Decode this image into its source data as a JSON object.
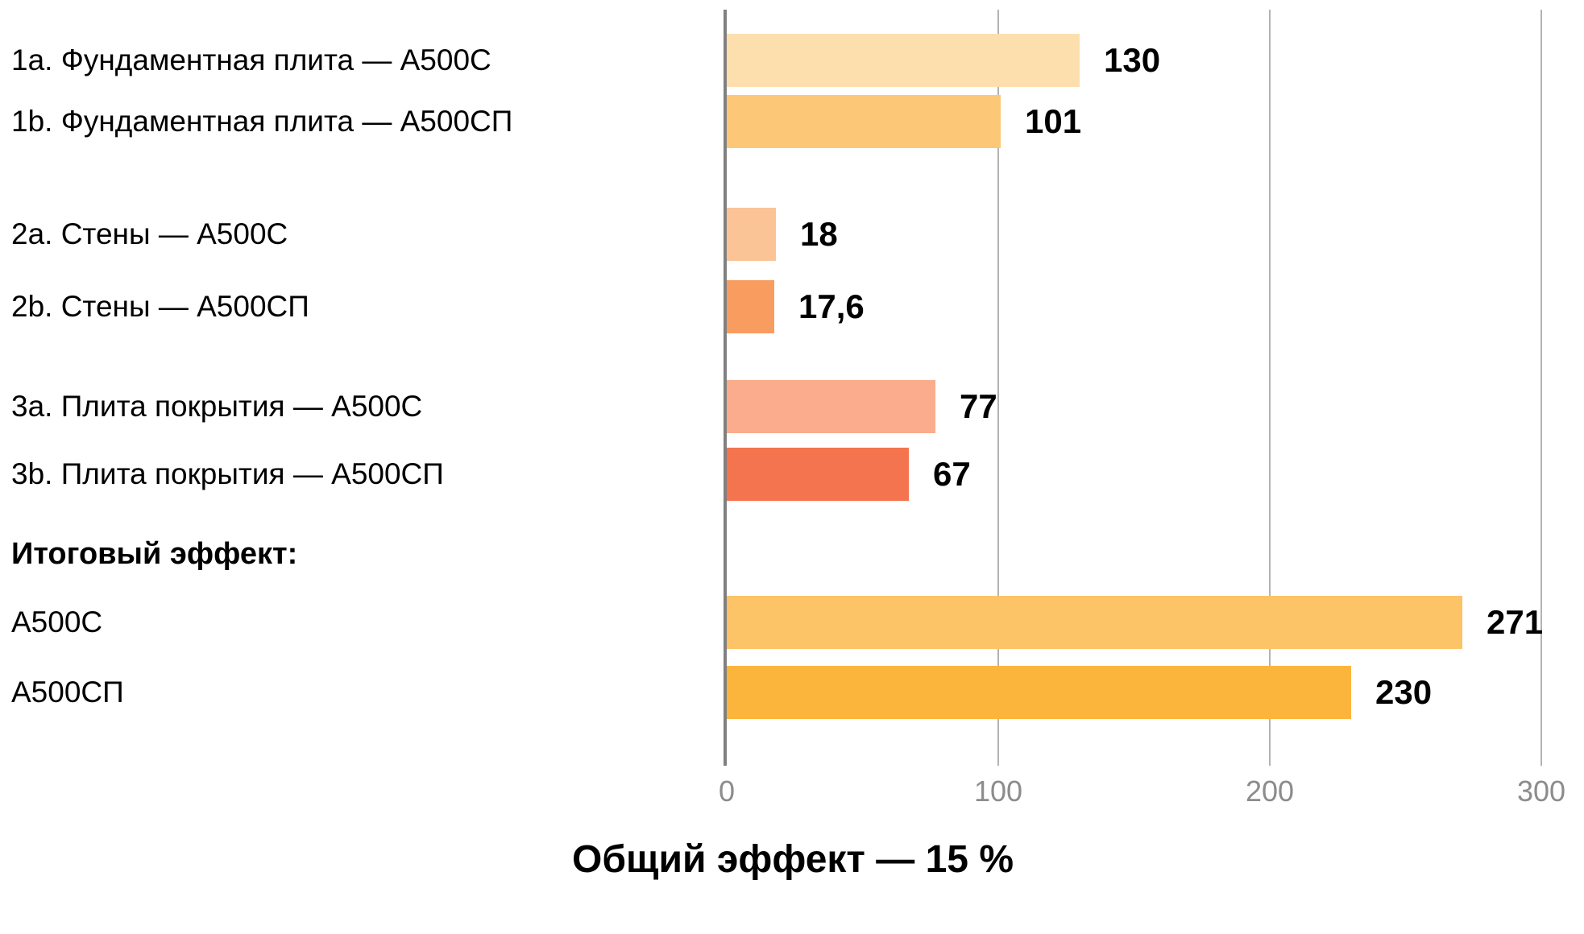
{
  "chart_data": {
    "type": "bar",
    "orientation": "horizontal",
    "title": "Общий эффект — 15 %",
    "section_heading": "Итоговый эффект:",
    "xlim": [
      0,
      300
    ],
    "x_ticks": [
      "0",
      "100",
      "200",
      "300"
    ],
    "x_tick_values": [
      0,
      100,
      200,
      300
    ],
    "grid": true,
    "axis_color": "#808080",
    "grid_color": "#b3b3b3",
    "tick_label_color": "#8c8c8c",
    "rows": [
      {
        "label": "1a. Фундаментная плита — А500С",
        "value": 130,
        "display": "130",
        "color": "#FDDFAE"
      },
      {
        "label": "1b. Фундаментная плита — А500СП",
        "value": 101,
        "display": "101",
        "color": "#FCC878"
      },
      {
        "label": "2a. Стены — А500С",
        "value": 18,
        "display": "18",
        "color": "#FBC497"
      },
      {
        "label": "2b. Стены — А500СП",
        "value": 17.6,
        "display": "17,6",
        "color": "#F89C60"
      },
      {
        "label": "3a. Плита покрытия — А500С",
        "value": 77,
        "display": "77",
        "color": "#FAAC8C"
      },
      {
        "label": "3b. Плита покрытия — А500СП",
        "value": 67,
        "display": "67",
        "color": "#F3744E"
      },
      {
        "label": "А500С",
        "value": 271,
        "display": "271",
        "color": "#FDC367"
      },
      {
        "label": "А500СП",
        "value": 230,
        "display": "230",
        "color": "#FCB53C"
      }
    ]
  }
}
